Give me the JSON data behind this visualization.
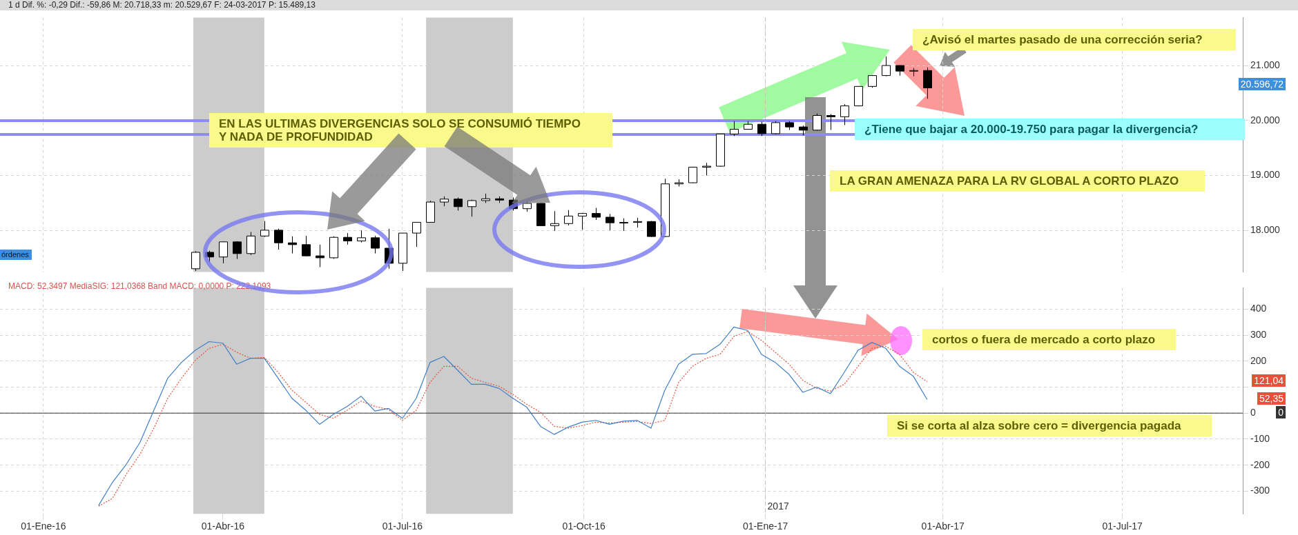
{
  "chart_data": [
    {
      "type": "candlestick",
      "title": "1 d Dif. %: -0,29 Dif.: -59,86 M: 20.718,33 m: 20.529,67 F: 24-03-2017 P: 15.489,13",
      "x": [
        "2016-03-18",
        "2016-03-25",
        "2016-04-01",
        "2016-04-08",
        "2016-04-15",
        "2016-04-22",
        "2016-04-29",
        "2016-05-06",
        "2016-05-13",
        "2016-05-20",
        "2016-05-27",
        "2016-06-03",
        "2016-06-10",
        "2016-06-17",
        "2016-06-24",
        "2016-07-01",
        "2016-07-08",
        "2016-07-15",
        "2016-07-22",
        "2016-07-29",
        "2016-08-05",
        "2016-08-12",
        "2016-08-19",
        "2016-08-26",
        "2016-09-02",
        "2016-09-09",
        "2016-09-16",
        "2016-09-23",
        "2016-09-30",
        "2016-10-07",
        "2016-10-14",
        "2016-10-21",
        "2016-10-28",
        "2016-11-04",
        "2016-11-11",
        "2016-11-18",
        "2016-11-25",
        "2016-12-02",
        "2016-12-09",
        "2016-12-16",
        "2016-12-23",
        "2016-12-30",
        "2017-01-06",
        "2017-01-13",
        "2017-01-20",
        "2017-01-27",
        "2017-02-03",
        "2017-02-10",
        "2017-02-17",
        "2017-02-24",
        "2017-03-03",
        "2017-03-10",
        "2017-03-17",
        "2017-03-24"
      ],
      "ohlc": [
        [
          17300,
          17620,
          17260,
          17600
        ],
        [
          17600,
          17630,
          17420,
          17515
        ],
        [
          17515,
          17800,
          17400,
          17790
        ],
        [
          17790,
          17800,
          17480,
          17577
        ],
        [
          17577,
          17970,
          17550,
          17897
        ],
        [
          17897,
          18170,
          17880,
          18003
        ],
        [
          18003,
          18030,
          17650,
          17773
        ],
        [
          17773,
          17890,
          17580,
          17740
        ],
        [
          17740,
          17900,
          17530,
          17535
        ],
        [
          17535,
          17740,
          17330,
          17500
        ],
        [
          17500,
          17890,
          17480,
          17873
        ],
        [
          17873,
          17950,
          17740,
          17807
        ],
        [
          17807,
          18000,
          17780,
          17865
        ],
        [
          17865,
          17900,
          17580,
          17675
        ],
        [
          17675,
          18030,
          17300,
          17400
        ],
        [
          17400,
          17950,
          17260,
          17950
        ],
        [
          17950,
          18150,
          17700,
          18147
        ],
        [
          18147,
          18540,
          18140,
          18516
        ],
        [
          18516,
          18620,
          18440,
          18570
        ],
        [
          18570,
          18600,
          18360,
          18432
        ],
        [
          18432,
          18560,
          18250,
          18543
        ],
        [
          18543,
          18670,
          18500,
          18576
        ],
        [
          18576,
          18620,
          18500,
          18552
        ],
        [
          18552,
          18600,
          18360,
          18395
        ],
        [
          18395,
          18540,
          18340,
          18492
        ],
        [
          18492,
          18500,
          18080,
          18085
        ],
        [
          18085,
          18350,
          17990,
          18124
        ],
        [
          18124,
          18370,
          18090,
          18261
        ],
        [
          18261,
          18320,
          18010,
          18308
        ],
        [
          18308,
          18410,
          18190,
          18240
        ],
        [
          18240,
          18300,
          18000,
          18138
        ],
        [
          18138,
          18220,
          17990,
          18145
        ],
        [
          18145,
          18230,
          18050,
          18161
        ],
        [
          18161,
          18170,
          17880,
          17888
        ],
        [
          17888,
          18940,
          17880,
          18847
        ],
        [
          18847,
          18930,
          18800,
          18868
        ],
        [
          18868,
          19160,
          18860,
          19152
        ],
        [
          19152,
          19230,
          19000,
          19170
        ],
        [
          19170,
          19760,
          19160,
          19757
        ],
        [
          19757,
          19990,
          19720,
          19843
        ],
        [
          19843,
          19990,
          19840,
          19934
        ],
        [
          19934,
          19980,
          19720,
          19763
        ],
        [
          19763,
          19990,
          19750,
          19964
        ],
        [
          19964,
          19990,
          19830,
          19885
        ],
        [
          19885,
          19910,
          19730,
          19827
        ],
        [
          19827,
          20130,
          19820,
          20094
        ],
        [
          20094,
          20120,
          19830,
          20071
        ],
        [
          20071,
          20300,
          19920,
          20269
        ],
        [
          20269,
          20630,
          20260,
          20624
        ],
        [
          20624,
          20830,
          20600,
          20822
        ],
        [
          20822,
          21170,
          20810,
          21005
        ],
        [
          21005,
          21010,
          20820,
          20903
        ],
        [
          20903,
          20960,
          20810,
          20914
        ],
        [
          20914,
          20970,
          20400,
          20596.72
        ]
      ],
      "xlim": [
        "2015-12-10",
        "2017-08-31"
      ],
      "xticks": [
        {
          "value": "2016-01-01",
          "label": null
        },
        {
          "value": "2016-04-01",
          "label": null
        },
        {
          "value": "2016-07-01",
          "label": null
        },
        {
          "value": "2016-10-01",
          "label": null
        },
        {
          "value": "2017-01-01",
          "label": null
        },
        {
          "value": "2017-04-01",
          "label": null
        },
        {
          "value": "2017-07-01",
          "label": null
        }
      ],
      "ylim": [
        17240,
        21880
      ],
      "yticks": [
        {
          "value": 18000,
          "label": "18.000"
        },
        {
          "value": 19000,
          "label": "19.000"
        },
        {
          "value": 20000,
          "label": "20.000"
        },
        {
          "value": 21000,
          "label": "21.000"
        }
      ],
      "tick_labels": "y",
      "grid": true,
      "legend": false,
      "ref_lines": [
        {
          "axis": "y",
          "value": 20000,
          "color": "#8c8cf0"
        },
        {
          "axis": "y",
          "value": 19750,
          "color": "#8c8cf0"
        },
        {
          "axis": "x",
          "value": "2017-01-01",
          "color": "#c0c0c0",
          "line_style": "dashed"
        }
      ],
      "bands": [
        {
          "axis": "x",
          "from": "2016-03-17",
          "to": "2016-04-22",
          "color": "#cccccc"
        },
        {
          "axis": "x",
          "from": "2016-07-13",
          "to": "2016-08-26",
          "color": "#cccccc"
        }
      ],
      "annotations": [
        "EN LAS ULTIMAS DIVERGENCIAS SOLO SE CONSUMIÓ TIEMPO\nY NADA DE PROFUNDIDAD",
        "¿Avisó el martes pasado de una corrección seria?",
        "¿Tiene que bajar a 20.000-19.750 para pagar la divergencia?",
        "LA GRAN AMENAZA PARA LA RV GLOBAL A CORTO PLAZO",
        "órdenes",
        "20.596,72"
      ]
    },
    {
      "type": "line",
      "title": "MACD: 52,3497 MediaSIG: 121,0368 Band MACD: 0,0000 P: 222,1093",
      "x": [
        "2016-01-29",
        "2016-02-05",
        "2016-02-12",
        "2016-02-19",
        "2016-02-26",
        "2016-03-04",
        "2016-03-11",
        "2016-03-18",
        "2016-03-25",
        "2016-04-01",
        "2016-04-08",
        "2016-04-15",
        "2016-04-22",
        "2016-04-29",
        "2016-05-06",
        "2016-05-13",
        "2016-05-20",
        "2016-05-27",
        "2016-06-03",
        "2016-06-10",
        "2016-06-17",
        "2016-06-24",
        "2016-07-01",
        "2016-07-08",
        "2016-07-15",
        "2016-07-22",
        "2016-07-29",
        "2016-08-05",
        "2016-08-12",
        "2016-08-19",
        "2016-08-26",
        "2016-09-02",
        "2016-09-09",
        "2016-09-16",
        "2016-09-23",
        "2016-09-30",
        "2016-10-07",
        "2016-10-14",
        "2016-10-21",
        "2016-10-28",
        "2016-11-04",
        "2016-11-11",
        "2016-11-18",
        "2016-11-25",
        "2016-12-02",
        "2016-12-09",
        "2016-12-16",
        "2016-12-23",
        "2016-12-30",
        "2017-01-06",
        "2017-01-13",
        "2017-01-20",
        "2017-01-27",
        "2017-02-03",
        "2017-02-10",
        "2017-02-17",
        "2017-02-24",
        "2017-03-03",
        "2017-03-10",
        "2017-03-17",
        "2017-03-24"
      ],
      "series": [
        {
          "color": "#3f7fc6",
          "line_style": "solid",
          "values": [
            -355,
            -266,
            -197,
            -112,
            11,
            134,
            195,
            242,
            275,
            269,
            188,
            211,
            211,
            134,
            57,
            11,
            -43,
            -5,
            26,
            65,
            8,
            18,
            -20,
            57,
            195,
            218,
            165,
            111,
            111,
            95,
            57,
            23,
            -51,
            -82,
            -54,
            -35,
            -28,
            -43,
            -31,
            -28,
            -58,
            88,
            188,
            226,
            229,
            265,
            331,
            318,
            226,
            195,
            149,
            80,
            100,
            75,
            157,
            242,
            272,
            249,
            180,
            142,
            52.35
          ]
        },
        {
          "color": "#e8503a",
          "line_style": "dotted",
          "values": [
            -358,
            -328,
            -235,
            -158,
            -58,
            57,
            134,
            203,
            249,
            265,
            234,
            211,
            214,
            157,
            88,
            42,
            -5,
            -20,
            11,
            46,
            26,
            14,
            -28,
            11,
            118,
            180,
            180,
            134,
            118,
            103,
            72,
            34,
            3,
            -51,
            -58,
            -48,
            -35,
            -38,
            -35,
            -32,
            -40,
            -28,
            118,
            180,
            211,
            226,
            295,
            314,
            280,
            234,
            188,
            126,
            95,
            85,
            111,
            180,
            249,
            257,
            226,
            157,
            121.04
          ]
        }
      ],
      "xlim": [
        "2015-12-10",
        "2017-08-31"
      ],
      "xticks": [
        {
          "value": "2016-01-01",
          "label": "01-Ene-16"
        },
        {
          "value": "2016-04-01",
          "label": "01-Abr-16"
        },
        {
          "value": "2016-07-01",
          "label": "01-Jul-16"
        },
        {
          "value": "2016-10-01",
          "label": "01-Oct-16"
        },
        {
          "value": "2017-01-01",
          "label": "01-Ene-17"
        },
        {
          "value": "2017-04-01",
          "label": "01-Abr-17"
        },
        {
          "value": "2017-07-01",
          "label": "01-Jul-17"
        }
      ],
      "ylim": [
        -387,
        482
      ],
      "yticks": [
        -300,
        -200,
        -100,
        0,
        {
          "value": 100,
          "label": null
        },
        200,
        300,
        400
      ],
      "grid": true,
      "legend": false,
      "marker": "none",
      "ref_lines": [
        {
          "axis": "y",
          "value": 0,
          "color": "#333333"
        },
        {
          "axis": "x",
          "value": "2017-01-01",
          "color": "#c0c0c0",
          "line_style": "dashed",
          "label": "2017"
        }
      ],
      "bands": [
        {
          "axis": "x",
          "from": "2016-03-17",
          "to": "2016-04-22",
          "color": "#cccccc"
        },
        {
          "axis": "x",
          "from": "2016-07-13",
          "to": "2016-08-26",
          "color": "#cccccc"
        }
      ],
      "annotations": [
        "cortos o fuera de mercado a corto plazo",
        "Si se corta al alza sobre cero = divergencia pagada",
        "121,04",
        "52,35",
        "0"
      ]
    }
  ]
}
